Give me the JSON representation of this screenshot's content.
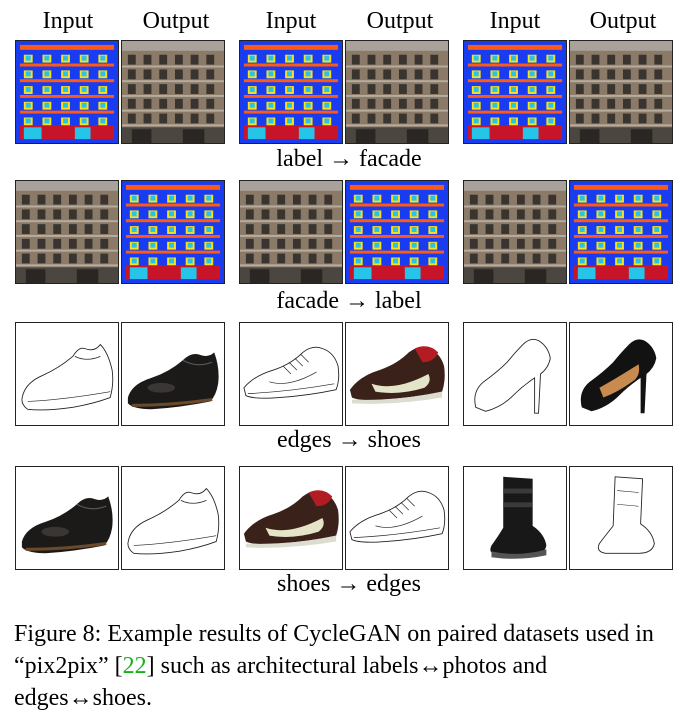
{
  "headers": [
    "Input",
    "Output",
    "Input",
    "Output",
    "Input",
    "Output"
  ],
  "row_captions": [
    "label → facade",
    "facade → label",
    "edges  → shoes",
    "shoes  → edges"
  ],
  "caption": {
    "prefix": "Figure 8: Example results of CycleGAN on paired datasets used in “pix2pix” [",
    "ref": "22",
    "suffix": "] such as architectural labels↔photos and edges↔shoes."
  },
  "colors": {
    "label_blue": "#1a3cf0",
    "label_orange": "#ff5a14",
    "label_yellow": "#f7e11a",
    "label_cyan": "#27c4ea",
    "label_red": "#c81428",
    "citation_green": "#18b218"
  },
  "grid": [
    [
      "label-map",
      "facade-photo",
      "label-map",
      "facade-photo",
      "label-map",
      "facade-photo"
    ],
    [
      "facade-photo",
      "label-map",
      "facade-photo",
      "label-map",
      "facade-photo",
      "label-map"
    ],
    [
      "shoe-edges",
      "shoe-photo",
      "sneaker-edges",
      "sneaker-photo",
      "heel-edges",
      "heel-photo"
    ],
    [
      "shoe-photo",
      "shoe-edges",
      "sneaker-photo",
      "sneaker-edges",
      "boot-photo",
      "boot-edges"
    ]
  ]
}
